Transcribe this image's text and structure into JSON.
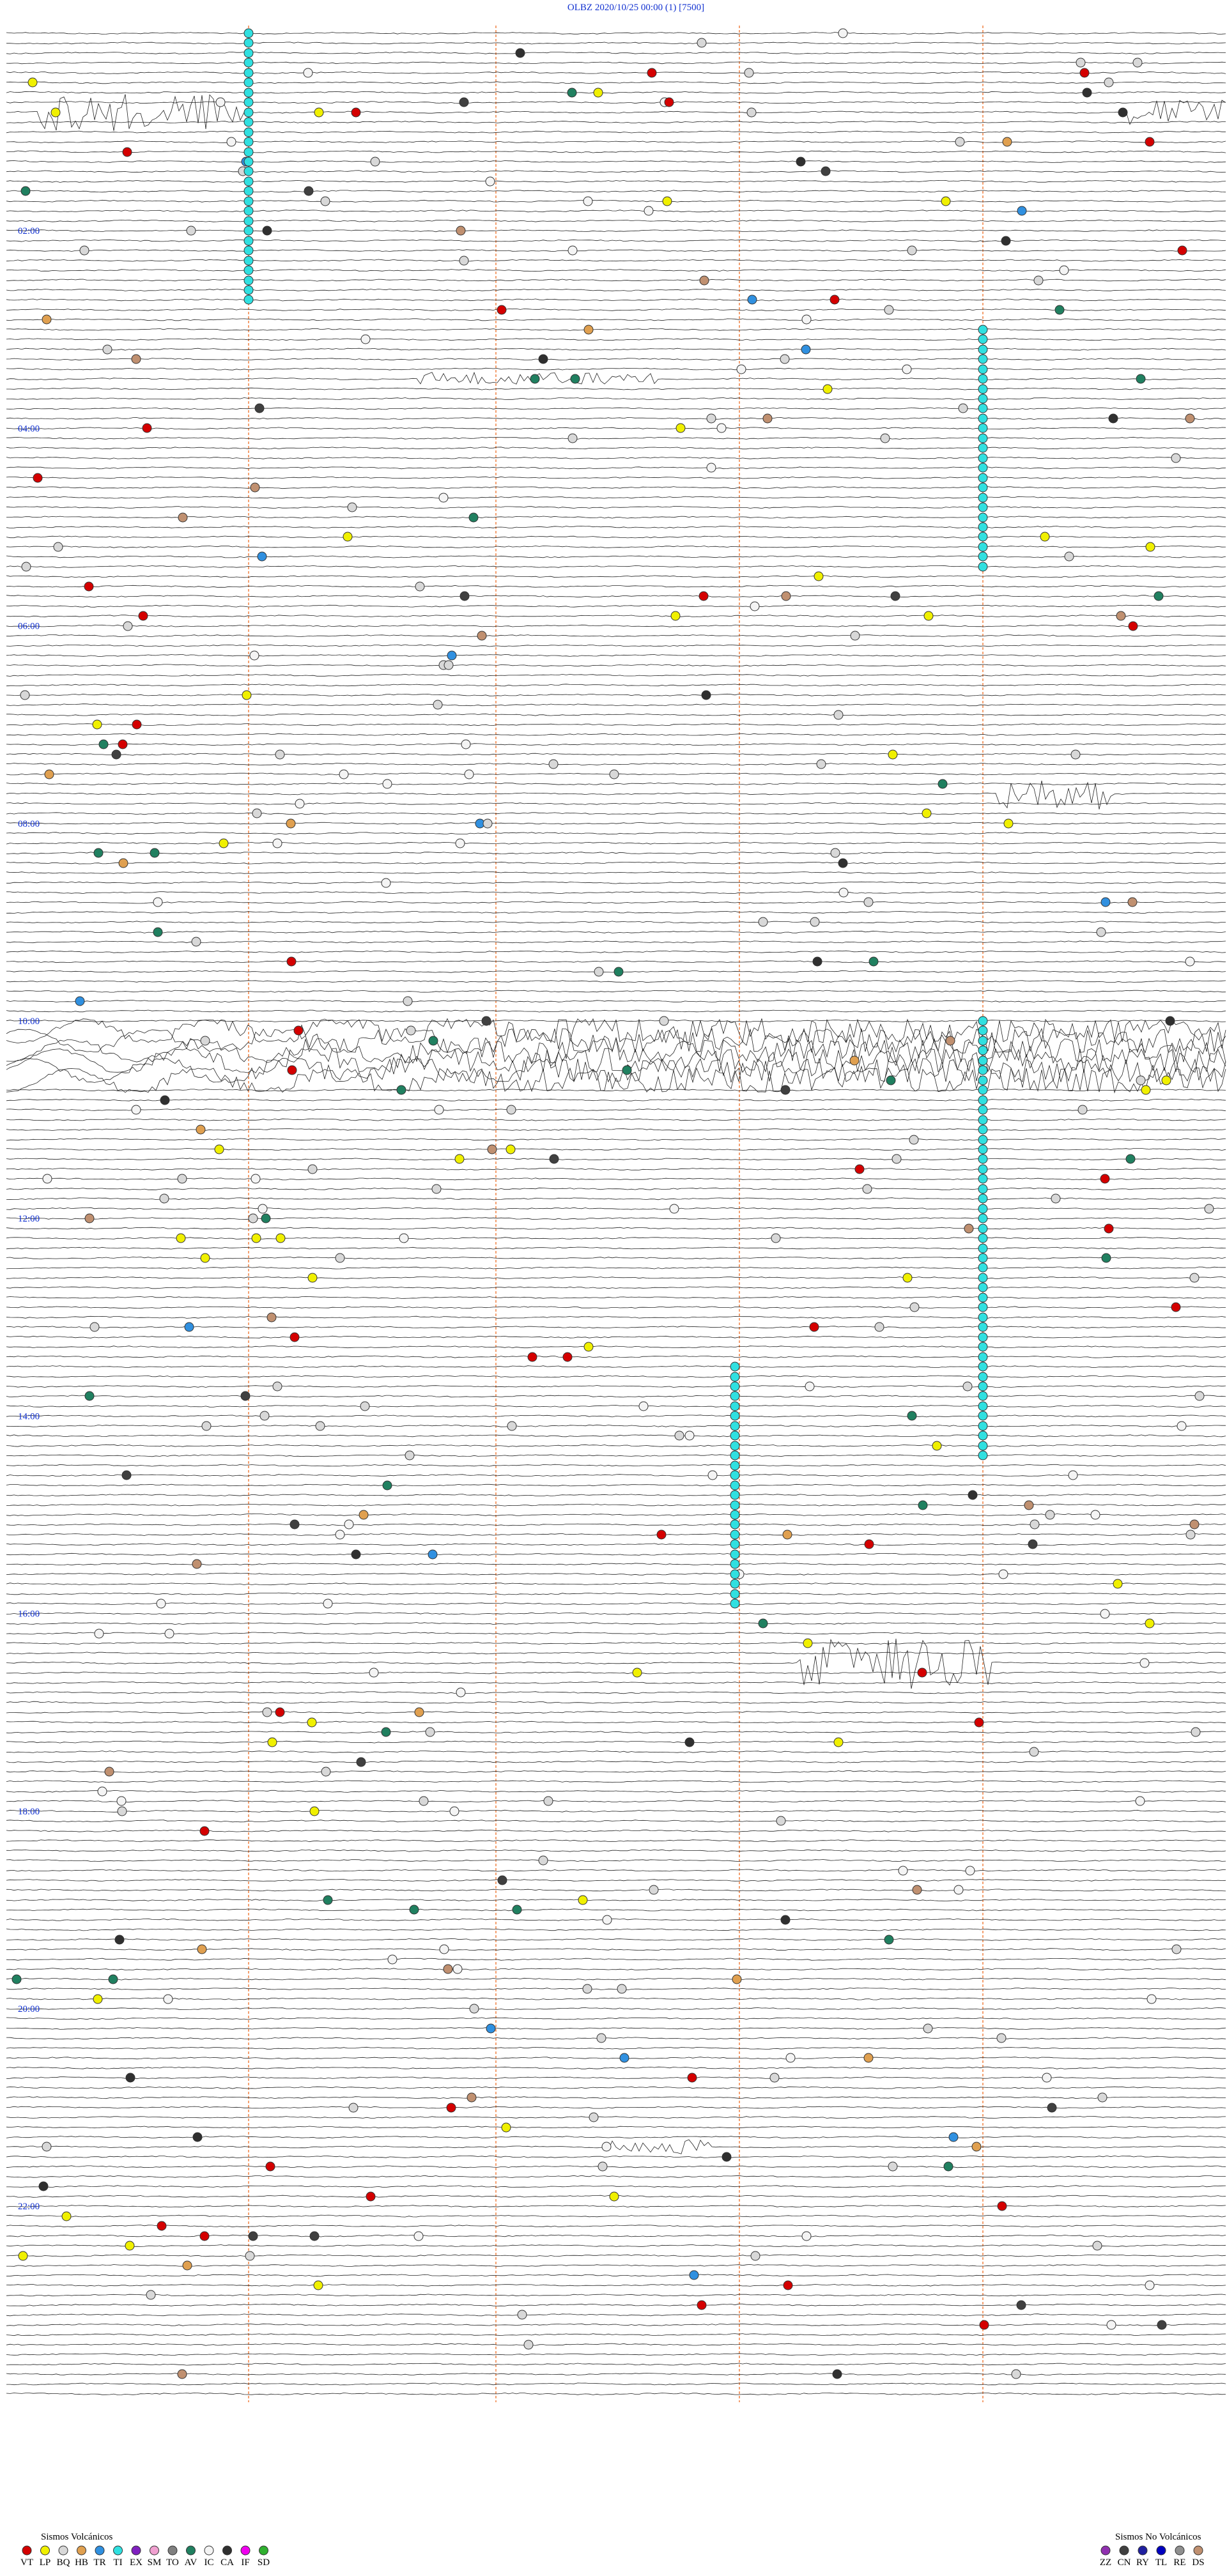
{
  "header": {
    "title": "OLBZ    2020/10/25 00:00    (1)    [7500]"
  },
  "time_labels": [
    "02:00",
    "04:00",
    "06:00",
    "08:00",
    "10:00",
    "12:00",
    "14:00",
    "16:00",
    "18:00",
    "20:00",
    "22:00"
  ],
  "legend": {
    "volcanic": {
      "title": "Sismos Volcánicos",
      "items": [
        {
          "label": "VT",
          "color": "#d40000"
        },
        {
          "label": "LP",
          "color": "#f0f000"
        },
        {
          "label": "BQ",
          "color": "#d8d8d8"
        },
        {
          "label": "HB",
          "color": "#e0a050"
        },
        {
          "label": "TR",
          "color": "#3090e0"
        },
        {
          "label": "TI",
          "color": "#30e0e0"
        },
        {
          "label": "EX",
          "color": "#8020c0"
        },
        {
          "label": "SM",
          "color": "#f0a0d0"
        },
        {
          "label": "TO",
          "color": "#808080"
        },
        {
          "label": "AV",
          "color": "#208060"
        },
        {
          "label": "IC",
          "color": "#f4f4f4"
        },
        {
          "label": "CA",
          "color": "#303030"
        },
        {
          "label": "IF",
          "color": "#f000f0"
        },
        {
          "label": "SD",
          "color": "#30b030"
        }
      ]
    },
    "non_volcanic": {
      "title": "Sismos No Volcánicos",
      "items": [
        {
          "label": "ZZ",
          "color": "#9030b0"
        },
        {
          "label": "CN",
          "color": "#404040"
        },
        {
          "label": "RY",
          "color": "#2020a0"
        },
        {
          "label": "TL",
          "color": "#0000c0"
        },
        {
          "label": "RE",
          "color": "#909090"
        },
        {
          "label": "DS",
          "color": "#c09070"
        }
      ]
    }
  }
}
